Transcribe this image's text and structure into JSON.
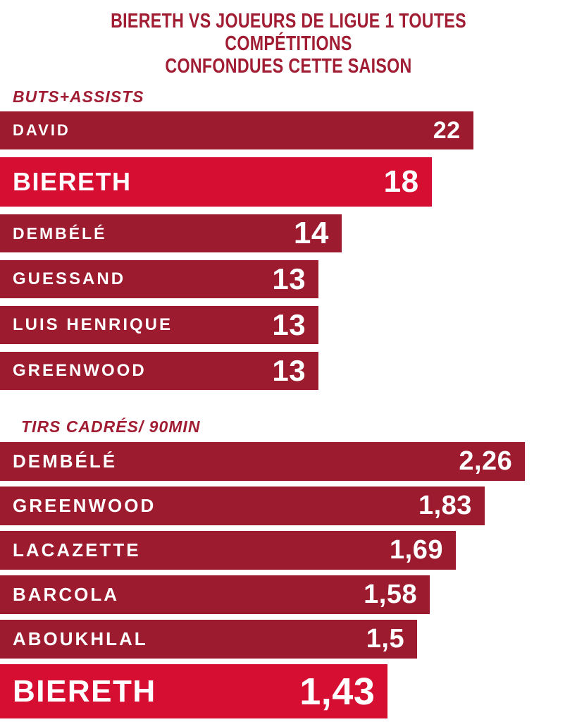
{
  "colors": {
    "bar_default": "#9C1B2F",
    "bar_highlight": "#D60E31",
    "title_text": "#A11D33",
    "bar_text": "#FFFFFF",
    "background": "#FFFFFF"
  },
  "title_lines": [
    "BIERETH VS JOUEURS DE LIGUE 1 TOUTES COMPÉTITIONS",
    "CONFONDUES CETTE SAISON"
  ],
  "chart_data": [
    {
      "type": "bar",
      "orientation": "horizontal",
      "title": "BUTS+ASSISTS",
      "categories": [
        "DAVID",
        "BIERETH",
        "DEMBÉLÉ",
        "GUESSAND",
        "LUIS HENRIQUE",
        "GREENWOOD"
      ],
      "values": [
        22,
        18,
        14,
        13,
        13,
        13
      ],
      "value_labels": [
        "22",
        "18",
        "14",
        "13",
        "13",
        "13"
      ],
      "highlighted_category": "BIERETH",
      "bar_width_pct": [
        82,
        74.8,
        59.2,
        55.2,
        55.2,
        55.2
      ],
      "label_font_px": [
        22,
        36,
        23,
        24,
        24,
        24
      ],
      "value_font_px": [
        34,
        44,
        44,
        42,
        42,
        42
      ],
      "grid": false,
      "axes_hidden": true,
      "value_label_position": "inside-right",
      "category_label_position": "inside-left"
    },
    {
      "type": "bar",
      "orientation": "horizontal",
      "title": "TIRS CADRÉS/ 90MIN",
      "categories": [
        "DEMBÉLÉ",
        "GREENWOOD",
        "LACAZETTE",
        "BARCOLA",
        "ABOUKHLAL",
        "BIERETH"
      ],
      "values": [
        2.26,
        1.83,
        1.69,
        1.58,
        1.5,
        1.43
      ],
      "value_labels": [
        "2,26",
        "1,83",
        "1,69",
        "1,58",
        "1,5",
        "1,43"
      ],
      "highlighted_category": "BIERETH",
      "bar_width_pct": [
        91,
        84,
        79,
        74.5,
        72.3,
        67.2
      ],
      "label_font_px": [
        26,
        26,
        26,
        26,
        26,
        44
      ],
      "value_font_px": [
        38,
        38,
        38,
        38,
        38,
        54
      ],
      "grid": false,
      "axes_hidden": true,
      "value_label_position": "inside-right",
      "category_label_position": "inside-left"
    }
  ]
}
